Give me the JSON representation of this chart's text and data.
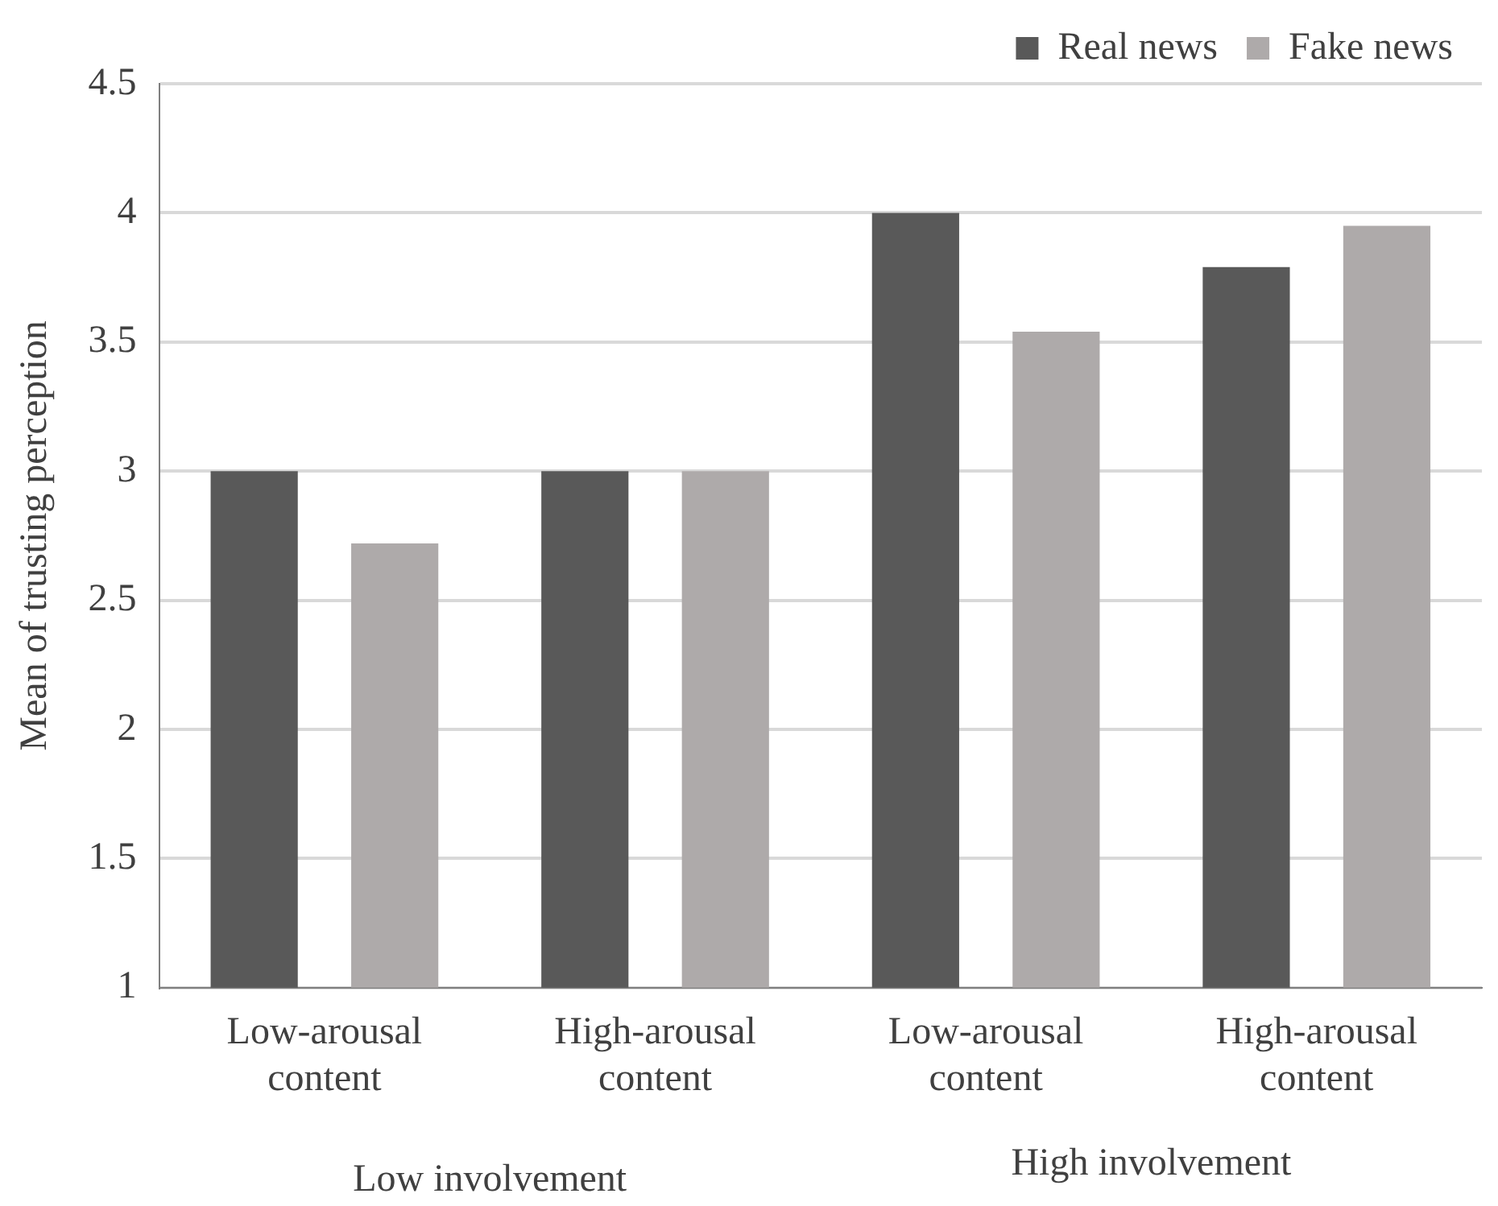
{
  "chart_data": {
    "type": "bar",
    "ylabel": "Mean of trusting perception",
    "categories": [
      "Low-arousal content",
      "High-arousal content",
      "Low-arousal content",
      "High-arousal content"
    ],
    "series": [
      {
        "name": "Real news",
        "color": "#595959",
        "values": [
          3,
          3,
          4,
          3.79
        ]
      },
      {
        "name": "Fake news",
        "color": "#aeaaaa",
        "values": [
          2.72,
          3,
          3.54,
          3.95
        ]
      }
    ],
    "ylim": [
      1,
      4.5
    ],
    "yticks": [
      1,
      1.5,
      2,
      2.5,
      3,
      3.5,
      4,
      4.5
    ],
    "grid": "y",
    "legend": "top right",
    "annotations": [
      "Low involvement",
      "High involvement"
    ]
  }
}
